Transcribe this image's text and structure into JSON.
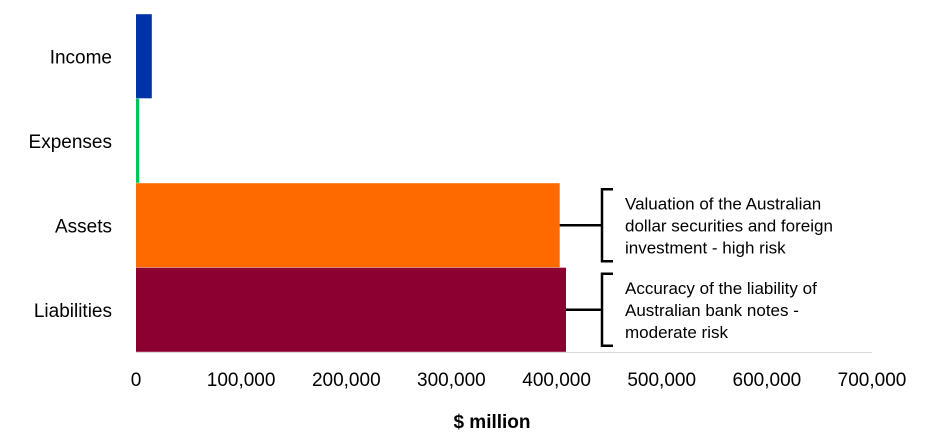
{
  "chart_data": {
    "type": "bar",
    "orientation": "horizontal",
    "categories": [
      "Income",
      "Expenses",
      "Assets",
      "Liabilities"
    ],
    "values": [
      15000,
      3000,
      403000,
      409000
    ],
    "colors": [
      "#0033a8",
      "#00c45a",
      "#ff6a00",
      "#8b0030"
    ],
    "xlabel": "$ million",
    "xlim": [
      0,
      700000
    ],
    "xticks": [
      {
        "value": 0,
        "label": "0"
      },
      {
        "value": 100000,
        "label": "100,000"
      },
      {
        "value": 200000,
        "label": "200,000"
      },
      {
        "value": 300000,
        "label": "300,000"
      },
      {
        "value": 400000,
        "label": "400,000"
      },
      {
        "value": 500000,
        "label": "500,000"
      },
      {
        "value": 600000,
        "label": "600,000"
      },
      {
        "value": 700000,
        "label": "700,000"
      }
    ],
    "grid": false,
    "legend": "none",
    "annotations": [
      {
        "category": "Assets",
        "lines": [
          "Valuation of the Australian",
          "dollar securities and foreign",
          "investment - high risk"
        ]
      },
      {
        "category": "Liabilities",
        "lines": [
          "Accuracy of the liability of",
          "Australian bank notes -",
          "moderate risk"
        ]
      }
    ]
  }
}
